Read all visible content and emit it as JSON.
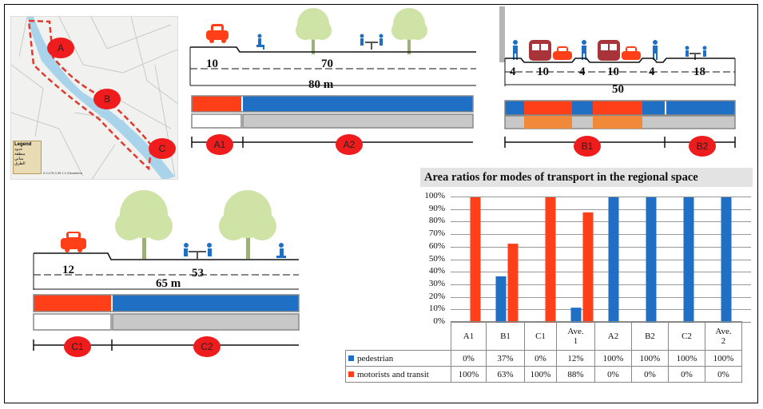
{
  "map": {
    "labels": [
      "A",
      "B",
      "C"
    ],
    "legend_title": "Legend",
    "legend_items": [
      "حدود",
      "منطقة",
      "مباني",
      "الطرق"
    ],
    "scale_text": "0  0.175  0.35        1:1 Kilometers"
  },
  "section_a": {
    "dims": [
      "10",
      "70"
    ],
    "total": "80 m",
    "tags": [
      "A1",
      "A2"
    ]
  },
  "section_b": {
    "dims": [
      "4",
      "10",
      "4",
      "10",
      "4",
      "18"
    ],
    "total": "50",
    "tags": [
      "B1",
      "B2"
    ]
  },
  "section_c": {
    "dims": [
      "12",
      "53"
    ],
    "total": "65 m",
    "tags": [
      "C1",
      "C2"
    ]
  },
  "colors": {
    "pedestrian": "#1f6fc5",
    "motorists": "#ff3f17",
    "transit_light": "#f08a3a",
    "ground": "#c8c8c8",
    "tree": "#cfe3a6",
    "marker": "#ee1c1c",
    "bus": "#a8343a"
  },
  "chart_data": {
    "type": "bar",
    "title": "Area ratios for modes of transport in the regional space",
    "categories": [
      "A1",
      "B1",
      "C1",
      "Ave. 1",
      "A2",
      "B2",
      "C2",
      "Ave. 2"
    ],
    "category_lines": [
      [
        "A1"
      ],
      [
        "B1"
      ],
      [
        "C1"
      ],
      [
        "Ave.",
        "1"
      ],
      [
        "A2"
      ],
      [
        "B2"
      ],
      [
        "C2"
      ],
      [
        "Ave.",
        "2"
      ]
    ],
    "series": [
      {
        "name": "pedestrian",
        "values": [
          0,
          37,
          0,
          12,
          100,
          100,
          100,
          100
        ],
        "labels": [
          "0%",
          "37%",
          "0%",
          "12%",
          "100%",
          "100%",
          "100%",
          "100%"
        ]
      },
      {
        "name": "motorists and transit",
        "values": [
          100,
          63,
          100,
          88,
          0,
          0,
          0,
          0
        ],
        "labels": [
          "100%",
          "63%",
          "100%",
          "88%",
          "0%",
          "0%",
          "0%",
          "0%"
        ]
      }
    ],
    "ylim": [
      0,
      100
    ],
    "yticks": [
      "0%",
      "10%",
      "20%",
      "30%",
      "40%",
      "50%",
      "60%",
      "70%",
      "80%",
      "90%",
      "100%"
    ],
    "grid": true,
    "legend": "data-table"
  }
}
